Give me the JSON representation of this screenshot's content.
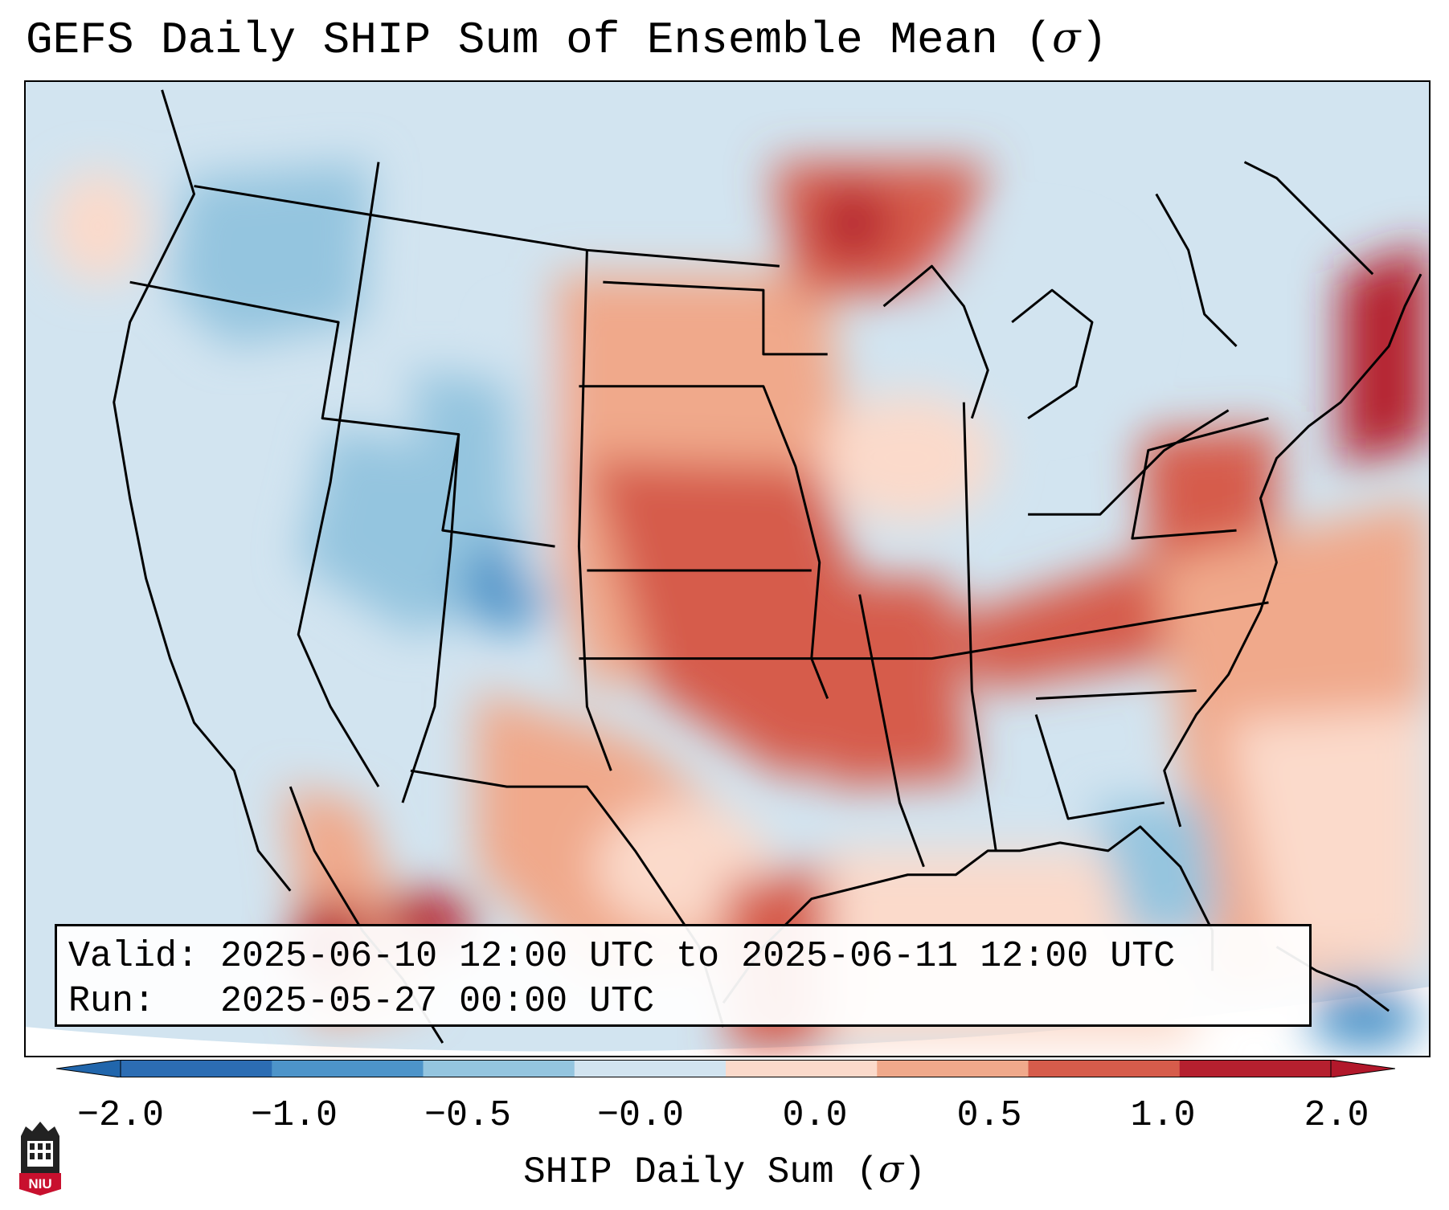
{
  "title": {
    "text": "GEFS Daily SHIP Sum of Ensemble Mean (",
    "symbol": "σ",
    "close": ")"
  },
  "info": {
    "valid_label": "Valid:",
    "valid_value": "2025-06-10 12:00 UTC to 2025-06-11 12:00 UTC",
    "run_label": "Run:",
    "run_value": "2025-05-27 00:00 UTC"
  },
  "colorbar": {
    "ticks": [
      "−2.0",
      "−1.0",
      "−0.5",
      "−0.0",
      "0.0",
      "0.5",
      "1.0",
      "2.0"
    ],
    "label_text": "SHIP Daily Sum (",
    "label_symbol": "σ",
    "label_close": ")",
    "colors": [
      "#2c6db3",
      "#4d94c9",
      "#94c5df",
      "#d2e4f0",
      "#fbdacb",
      "#f0a98b",
      "#d65c4b",
      "#b5202f"
    ],
    "extend_low_color": "#2166ac",
    "extend_high_color": "#b2182b"
  },
  "logo": {
    "text": "NIU",
    "color": "#c8102e"
  },
  "map": {
    "ocean_color": "#d2e4f0",
    "outside_color": "#ffffff",
    "border_color": "#000000"
  }
}
